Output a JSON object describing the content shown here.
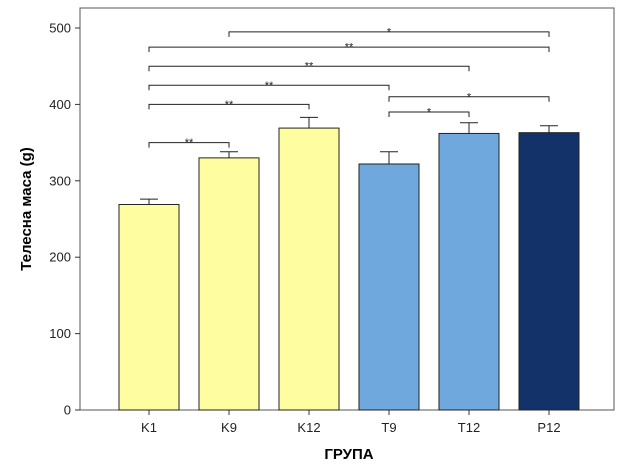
{
  "chart_data": {
    "type": "bar",
    "categories": [
      "K1",
      "K9",
      "K12",
      "T9",
      "T12",
      "P12"
    ],
    "values": [
      269,
      330,
      369,
      322,
      362,
      363
    ],
    "error_upper": [
      276,
      338,
      383,
      338,
      376,
      372
    ],
    "bar_colors": [
      "#fefea0",
      "#fefea0",
      "#fefea0",
      "#6fa8dc",
      "#6fa8dc",
      "#14326a"
    ],
    "xlabel": "ГРУПА",
    "ylabel": "Телесна маса (g)",
    "ylim": [
      0,
      500
    ],
    "yticks": [
      0,
      100,
      200,
      300,
      400,
      500
    ],
    "grid": false,
    "significance": [
      {
        "from": "K9",
        "to": "P12",
        "y": 495,
        "label": "*"
      },
      {
        "from": "K1",
        "to": "P12",
        "y": 475,
        "label": "**"
      },
      {
        "from": "K1",
        "to": "T12",
        "y": 450,
        "label": "**"
      },
      {
        "from": "K1",
        "to": "T9",
        "y": 425,
        "label": "**"
      },
      {
        "from": "K1",
        "to": "K12",
        "y": 400,
        "label": "**"
      },
      {
        "from": "T9",
        "to": "P12",
        "y": 410,
        "label": "*"
      },
      {
        "from": "T9",
        "to": "T12",
        "y": 390,
        "label": "*"
      },
      {
        "from": "K1",
        "to": "K9",
        "y": 350,
        "label": "**"
      }
    ]
  }
}
